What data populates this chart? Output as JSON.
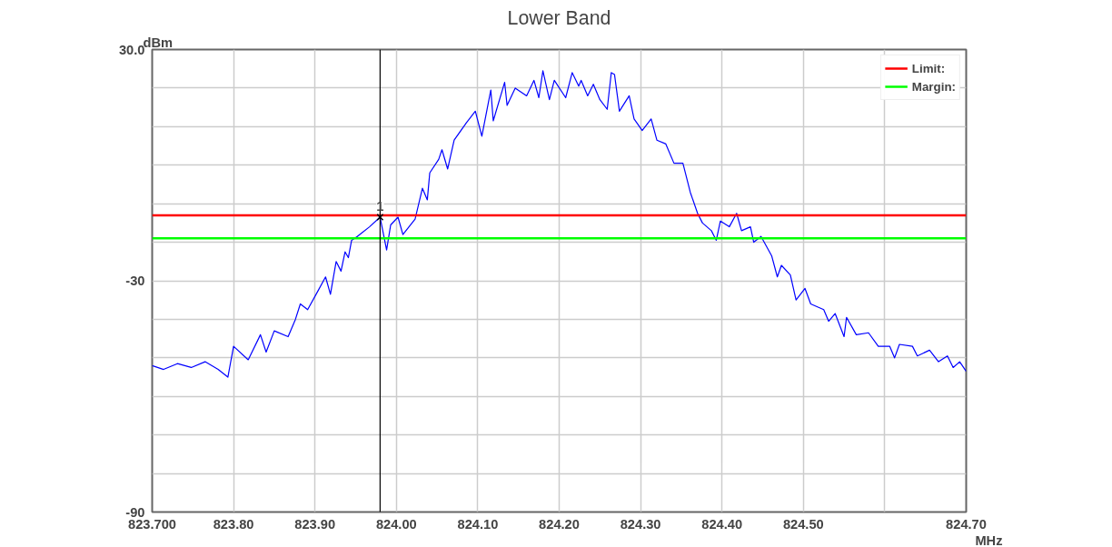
{
  "chart_data": {
    "type": "line",
    "title": "Lower Band",
    "xlabel": "MHz",
    "ylabel": "dBm",
    "xlim": [
      823.7,
      824.7
    ],
    "ylim": [
      -90,
      30
    ],
    "xticks": [
      {
        "value": 823.7,
        "label": "823.700"
      },
      {
        "value": 823.8,
        "label": "823.80"
      },
      {
        "value": 823.9,
        "label": "823.90"
      },
      {
        "value": 824.0,
        "label": "824.00"
      },
      {
        "value": 824.1,
        "label": "824.10"
      },
      {
        "value": 824.2,
        "label": "824.20"
      },
      {
        "value": 824.3,
        "label": "824.30"
      },
      {
        "value": 824.4,
        "label": "824.40"
      },
      {
        "value": 824.5,
        "label": "824.50"
      },
      {
        "value": 824.6,
        "label": null
      },
      {
        "value": 824.7,
        "label": "824.70"
      }
    ],
    "yticks": [
      {
        "value": 30,
        "label": "30.0"
      },
      {
        "value": 20,
        "label": null
      },
      {
        "value": 10,
        "label": null
      },
      {
        "value": 0,
        "label": null
      },
      {
        "value": -10,
        "label": null
      },
      {
        "value": -20,
        "label": null
      },
      -30,
      {
        "value": -40,
        "label": null
      },
      {
        "value": -50,
        "label": null
      },
      {
        "value": -60,
        "label": null
      },
      {
        "value": -70,
        "label": null
      },
      {
        "value": -80,
        "label": null
      },
      -90
    ],
    "grid": true,
    "legend": "top right",
    "series": [
      {
        "color": "#0000ff",
        "x": [
          823.7,
          823.714,
          823.731,
          823.748,
          823.765,
          823.781,
          823.793,
          823.8,
          823.818,
          823.833,
          823.84,
          823.85,
          823.867,
          823.876,
          823.882,
          823.891,
          823.904,
          823.913,
          823.919,
          823.926,
          823.932,
          823.937,
          823.941,
          823.945,
          823.952,
          823.967,
          823.98,
          823.988,
          823.993,
          824.002,
          824.008,
          824.023,
          824.032,
          824.038,
          824.041,
          824.052,
          824.056,
          824.063,
          824.071,
          824.086,
          824.097,
          824.105,
          824.116,
          824.119,
          824.133,
          824.136,
          824.146,
          824.16,
          824.169,
          824.175,
          824.18,
          824.188,
          824.194,
          824.208,
          824.216,
          824.224,
          824.227,
          824.235,
          824.242,
          824.25,
          824.259,
          824.264,
          824.268,
          824.274,
          824.286,
          824.292,
          824.302,
          824.313,
          824.32,
          824.331,
          824.341,
          824.352,
          824.361,
          824.37,
          824.376,
          824.387,
          824.393,
          824.398,
          824.409,
          824.418,
          824.424,
          824.435,
          824.439,
          824.448,
          824.461,
          824.468,
          824.473,
          824.484,
          824.491,
          824.502,
          824.509,
          824.525,
          824.531,
          824.539,
          824.55,
          824.553,
          824.565,
          824.58,
          824.592,
          824.606,
          824.612,
          824.618,
          824.634,
          824.64,
          824.655,
          824.666,
          824.677,
          824.684,
          824.692,
          824.7
        ],
        "values": [
          -52,
          -53,
          -51.5,
          -52.5,
          -51,
          -53,
          -55,
          -47,
          -50.5,
          -44,
          -48.5,
          -43,
          -44.5,
          -40,
          -36,
          -37.5,
          -32.5,
          -29,
          -33.5,
          -25,
          -27.5,
          -22.5,
          -24,
          -19.5,
          -18.5,
          -16,
          -13.5,
          -22,
          -15.5,
          -13.5,
          -18,
          -14,
          -6,
          -9,
          -2,
          1.5,
          4,
          -1,
          6.5,
          11,
          14,
          7.5,
          19.5,
          11.5,
          21.5,
          15.5,
          20,
          18,
          22,
          17.5,
          24.5,
          17,
          22,
          17.5,
          24,
          20.5,
          22,
          18,
          21,
          17,
          14.5,
          24,
          23.5,
          14,
          18,
          12,
          9,
          12,
          6.5,
          5.5,
          0.5,
          0.5,
          -7,
          -12.5,
          -15,
          -17,
          -19.5,
          -14.5,
          -16,
          -12.5,
          -17,
          -16,
          -20,
          -18.5,
          -23.5,
          -29,
          -26,
          -28.5,
          -35,
          -32,
          -36,
          -37.5,
          -40.5,
          -38.5,
          -44.5,
          -39.5,
          -44,
          -43.5,
          -47,
          -47,
          -50,
          -46.5,
          -47,
          -49.5,
          -48,
          -51,
          -49.5,
          -52.5,
          -51,
          -53.5
        ]
      }
    ],
    "ref_lines": [
      {
        "axis": "y",
        "value": -13,
        "label": "Limit:",
        "color": "#ff0000"
      },
      {
        "axis": "y",
        "value": -19,
        "label": "Margin:",
        "color": "#00ff00"
      },
      {
        "axis": "x",
        "value": 823.98,
        "color": "#000000"
      }
    ],
    "annotations": [
      {
        "text": "1",
        "x": 823.98,
        "y": -13.5
      }
    ]
  }
}
